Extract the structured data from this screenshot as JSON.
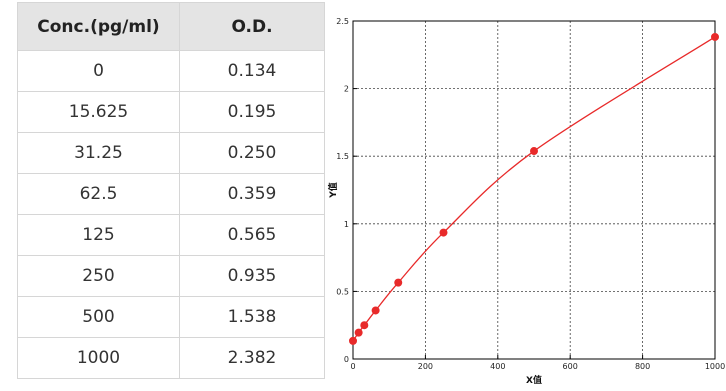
{
  "table": {
    "headers": [
      "Conc.(pg/ml)",
      "O.D."
    ],
    "rows": [
      [
        "0",
        "0.134"
      ],
      [
        "15.625",
        "0.195"
      ],
      [
        "31.25",
        "0.250"
      ],
      [
        "62.5",
        "0.359"
      ],
      [
        "125",
        "0.565"
      ],
      [
        "250",
        "0.935"
      ],
      [
        "500",
        "1.538"
      ],
      [
        "1000",
        "2.382"
      ]
    ]
  },
  "chart_data": {
    "type": "scatter",
    "xlabel": "X值",
    "ylabel": "Y值",
    "xlim": [
      0,
      1000
    ],
    "ylim": [
      0,
      2.5
    ],
    "x_ticks": [
      "0",
      "200",
      "400",
      "600",
      "800",
      "1000"
    ],
    "y_ticks": [
      "0",
      "0.5",
      "1",
      "1.5",
      "2",
      "2.5"
    ],
    "grid": true,
    "fit_curve": true,
    "point_color": "#e82a2a",
    "curve_color": "#e82a2a",
    "series": [
      {
        "x": [
          0,
          15.625,
          31.25,
          62.5,
          125,
          250,
          500,
          1000
        ],
        "y": [
          0.134,
          0.195,
          0.25,
          0.359,
          0.565,
          0.935,
          1.538,
          2.382
        ]
      }
    ]
  }
}
